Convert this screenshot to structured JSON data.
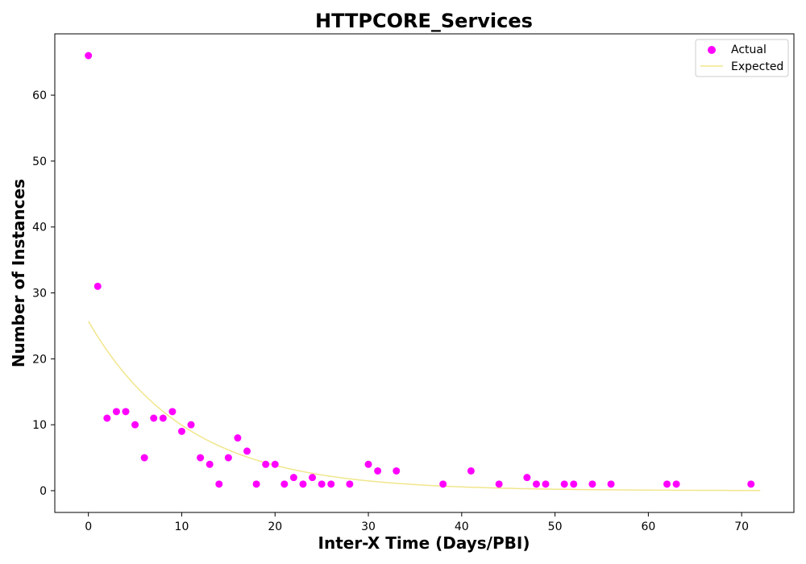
{
  "chart_data": {
    "type": "scatter",
    "title": "HTTPCORE_Services",
    "xlabel": "Inter-X Time (Days/PBI)",
    "ylabel": "Number of Instances",
    "xlim": [
      -3.6,
      75.6
    ],
    "ylim": [
      -3.3,
      69.3
    ],
    "xticks": [
      0,
      10,
      20,
      30,
      40,
      50,
      60,
      70
    ],
    "yticks": [
      0,
      10,
      20,
      30,
      40,
      50,
      60
    ],
    "grid": false,
    "legend_position": "top-right",
    "series": [
      {
        "name": "Actual",
        "kind": "scatter",
        "color": "#ff00ff",
        "points": [
          [
            0,
            66
          ],
          [
            1,
            31
          ],
          [
            2,
            11
          ],
          [
            3,
            12
          ],
          [
            4,
            12
          ],
          [
            5,
            10
          ],
          [
            6,
            5
          ],
          [
            7,
            11
          ],
          [
            8,
            11
          ],
          [
            9,
            12
          ],
          [
            10,
            9
          ],
          [
            11,
            10
          ],
          [
            12,
            5
          ],
          [
            13,
            4
          ],
          [
            14,
            1
          ],
          [
            15,
            5
          ],
          [
            16,
            8
          ],
          [
            17,
            6
          ],
          [
            18,
            1
          ],
          [
            19,
            4
          ],
          [
            20,
            4
          ],
          [
            21,
            1
          ],
          [
            22,
            2
          ],
          [
            23,
            1
          ],
          [
            24,
            2
          ],
          [
            25,
            1
          ],
          [
            26,
            1
          ],
          [
            28,
            1
          ],
          [
            30,
            4
          ],
          [
            31,
            3
          ],
          [
            33,
            3
          ],
          [
            38,
            1
          ],
          [
            41,
            3
          ],
          [
            44,
            1
          ],
          [
            47,
            2
          ],
          [
            48,
            1
          ],
          [
            49,
            1
          ],
          [
            51,
            1
          ],
          [
            52,
            1
          ],
          [
            54,
            1
          ],
          [
            56,
            1
          ],
          [
            62,
            1
          ],
          [
            63,
            1
          ],
          [
            71,
            1
          ]
        ]
      },
      {
        "name": "Expected",
        "kind": "line",
        "color": "#f0e68c",
        "curve": {
          "form": "exponential",
          "amplitude": 25.7,
          "rate": 0.095,
          "x_start": 0,
          "x_end": 72
        }
      }
    ]
  }
}
